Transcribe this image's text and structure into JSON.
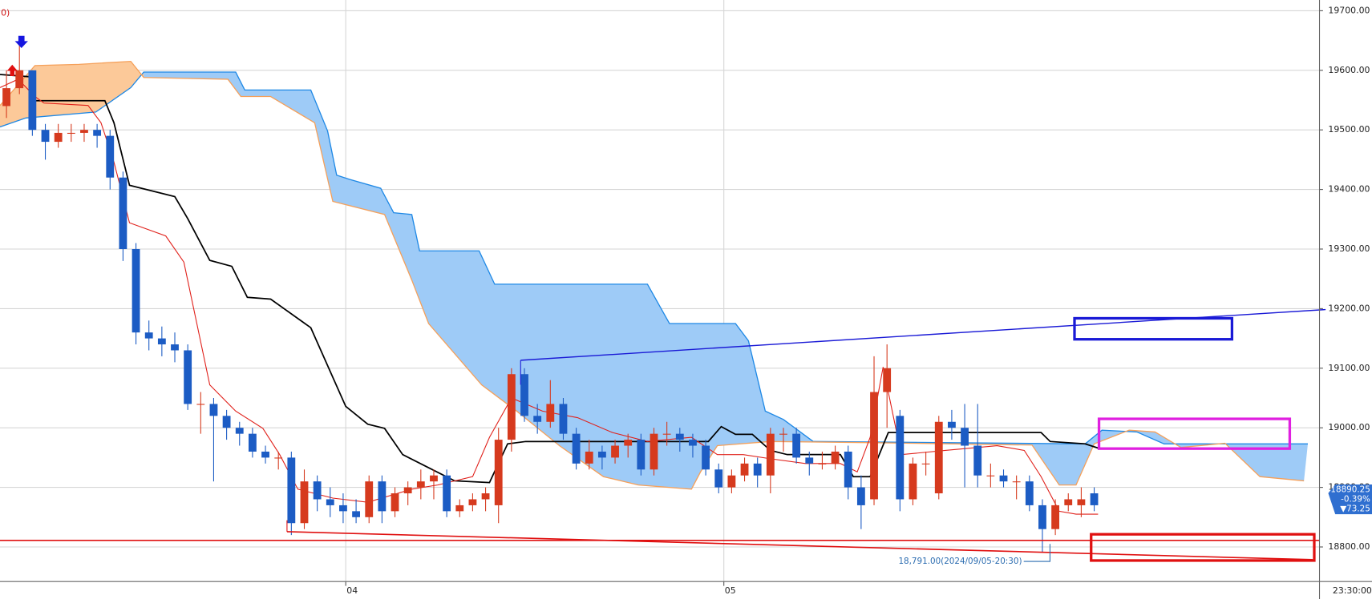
{
  "chart_data": {
    "type": "candlestick",
    "indicator_label": "0)",
    "up_color": "#d63a1e",
    "down_color": "#1c5cc4",
    "ohlc": [
      [
        19540,
        19600,
        19520,
        19570
      ],
      [
        19570,
        19650,
        19560,
        19600
      ],
      [
        19600,
        19600,
        19490,
        19500
      ],
      [
        19500,
        19510,
        19450,
        19480
      ],
      [
        19480,
        19510,
        19470,
        19495
      ],
      [
        19495,
        19510,
        19480,
        19495
      ],
      [
        19495,
        19510,
        19480,
        19500
      ],
      [
        19500,
        19510,
        19470,
        19490
      ],
      [
        19490,
        19500,
        19400,
        19420
      ],
      [
        19420,
        19430,
        19280,
        19300
      ],
      [
        19300,
        19310,
        19140,
        19160
      ],
      [
        19160,
        19180,
        19130,
        19150
      ],
      [
        19150,
        19170,
        19120,
        19140
      ],
      [
        19140,
        19160,
        19110,
        19130
      ],
      [
        19130,
        19140,
        19030,
        19040
      ],
      [
        19040,
        19060,
        18990,
        19040
      ],
      [
        19040,
        19050,
        18910,
        19020
      ],
      [
        19020,
        19030,
        18980,
        19000
      ],
      [
        19000,
        19010,
        18970,
        18990
      ],
      [
        18990,
        19000,
        18950,
        18960
      ],
      [
        18960,
        18970,
        18940,
        18950
      ],
      [
        18950,
        18960,
        18930,
        18950
      ],
      [
        18950,
        18960,
        18820,
        18840
      ],
      [
        18840,
        18930,
        18830,
        18910
      ],
      [
        18910,
        18920,
        18860,
        18880
      ],
      [
        18880,
        18900,
        18850,
        18870
      ],
      [
        18870,
        18890,
        18840,
        18860
      ],
      [
        18860,
        18880,
        18840,
        18850
      ],
      [
        18850,
        18920,
        18840,
        18910
      ],
      [
        18910,
        18920,
        18840,
        18860
      ],
      [
        18860,
        18900,
        18850,
        18890
      ],
      [
        18890,
        18910,
        18870,
        18900
      ],
      [
        18900,
        18930,
        18880,
        18910
      ],
      [
        18910,
        18930,
        18880,
        18920
      ],
      [
        18920,
        18930,
        18850,
        18860
      ],
      [
        18860,
        18880,
        18850,
        18870
      ],
      [
        18870,
        18890,
        18860,
        18880
      ],
      [
        18880,
        18900,
        18860,
        18890
      ],
      [
        18870,
        19000,
        18840,
        18980
      ],
      [
        18980,
        19100,
        18960,
        19090
      ],
      [
        19090,
        19100,
        19010,
        19020
      ],
      [
        19020,
        19040,
        18990,
        19010
      ],
      [
        19010,
        19080,
        19000,
        19040
      ],
      [
        19040,
        19050,
        18980,
        18990
      ],
      [
        18990,
        19000,
        18930,
        18940
      ],
      [
        18940,
        18980,
        18930,
        18960
      ],
      [
        18960,
        18970,
        18930,
        18950
      ],
      [
        18950,
        18980,
        18940,
        18970
      ],
      [
        18970,
        18990,
        18950,
        18980
      ],
      [
        18980,
        18990,
        18920,
        18930
      ],
      [
        18930,
        19000,
        18920,
        18990
      ],
      [
        18990,
        19010,
        18970,
        18990
      ],
      [
        18990,
        19000,
        18960,
        18980
      ],
      [
        18980,
        18990,
        18950,
        18970
      ],
      [
        18970,
        18980,
        18920,
        18930
      ],
      [
        18930,
        18940,
        18890,
        18900
      ],
      [
        18900,
        18930,
        18890,
        18920
      ],
      [
        18920,
        18950,
        18910,
        18940
      ],
      [
        18940,
        18950,
        18900,
        18920
      ],
      [
        18920,
        19000,
        18890,
        18990
      ],
      [
        18990,
        19000,
        18960,
        18990
      ],
      [
        18990,
        19000,
        18940,
        18950
      ],
      [
        18950,
        18960,
        18920,
        18940
      ],
      [
        18940,
        18960,
        18930,
        18940
      ],
      [
        18940,
        18970,
        18930,
        18960
      ],
      [
        18960,
        18970,
        18880,
        18900
      ],
      [
        18900,
        18920,
        18830,
        18870
      ],
      [
        18880,
        19120,
        18870,
        19060
      ],
      [
        19060,
        19140,
        19000,
        19100
      ],
      [
        19020,
        19030,
        18860,
        18880
      ],
      [
        18880,
        18950,
        18870,
        18940
      ],
      [
        18940,
        18960,
        18920,
        18940
      ],
      [
        18890,
        19020,
        18880,
        19010
      ],
      [
        19010,
        19030,
        18980,
        19000
      ],
      [
        19000,
        19040,
        18900,
        18970
      ],
      [
        18970,
        19040,
        18900,
        18920
      ],
      [
        18920,
        18940,
        18900,
        18920
      ],
      [
        18920,
        18930,
        18900,
        18910
      ],
      [
        18910,
        18920,
        18880,
        18910
      ],
      [
        18910,
        18920,
        18860,
        18870
      ],
      [
        18870,
        18880,
        18791,
        18830
      ],
      [
        18830,
        18880,
        18820,
        18870
      ],
      [
        18870,
        18890,
        18860,
        18880
      ],
      [
        18870,
        18900,
        18850,
        18880
      ],
      [
        18890,
        18900,
        18860,
        18870
      ]
    ],
    "lines": [
      {
        "color": "#000000",
        "width": 1.6,
        "x": [
          -0.5,
          1.9,
          2.2,
          7.6,
          8.3,
          9.5,
          13,
          14,
          15.7,
          17.4,
          18.6,
          20.4,
          23.5,
          26.2,
          27.9,
          29.2,
          30.6,
          32.6,
          34.6,
          37.3,
          38.7,
          40.1,
          54.2,
          55.2,
          56.3,
          57.6,
          59,
          60.3,
          64.4,
          65.4,
          66.7,
          68.1,
          79.9,
          80.6,
          83.3,
          84.3
        ],
        "values": [
          19593,
          19589,
          19549,
          19549,
          19512,
          19407,
          19388,
          19351,
          19281,
          19271,
          19219,
          19216,
          19168,
          19036,
          19006,
          18999,
          18955,
          18933,
          18911,
          18908,
          18973,
          18977,
          18977,
          19002,
          18989,
          18989,
          18962,
          18955,
          18955,
          18918,
          18918,
          18992,
          18992,
          18977,
          18973,
          18966
        ]
      },
      {
        "color": "#e0201a",
        "width": 1,
        "x": [
          -0.5,
          0.9,
          2.2,
          2.9,
          6.3,
          7.3,
          8.3,
          9.5,
          12.3,
          13.7,
          15.7,
          17.7,
          19.8,
          21.1,
          22.5,
          25.2,
          27.9,
          31.3,
          33.3,
          36,
          37.3,
          39,
          41.4,
          44.1,
          46.8,
          49.5,
          52.9,
          54.9,
          56.9,
          59,
          61.7,
          64.4,
          65.7,
          66.7,
          67.7,
          69.1,
          72.5,
          76.5,
          78.6,
          79.9,
          81.3,
          82.6,
          84.3
        ],
        "values": [
          19571,
          19585,
          19556,
          19545,
          19541,
          19512,
          19446,
          19344,
          19322,
          19278,
          19072,
          19028,
          18999,
          18955,
          18897,
          18882,
          18875,
          18897,
          18904,
          18918,
          18984,
          19050,
          19028,
          19017,
          18992,
          18977,
          18984,
          18955,
          18955,
          18948,
          18940,
          18940,
          18926,
          18984,
          19102,
          18955,
          18962,
          18970,
          18962,
          18918,
          18860,
          18855,
          18855
        ]
      }
    ],
    "cloud": {
      "span_a": {
        "color": "#1e88e5",
        "x": [
          -0.5,
          1.5,
          6.9,
          9.6,
          10.6,
          17.7,
          18.4,
          23.5,
          24.8,
          25.5,
          26.5,
          28.9,
          29.9,
          31.3,
          31.9,
          36.5,
          37.7,
          49.5,
          51.2,
          56.3,
          57.3,
          58.6,
          60,
          62.3,
          83.3,
          84.6,
          87.3,
          89.4,
          96.1,
          100.5
        ],
        "values": [
          19505,
          19520,
          19530,
          19571,
          19597,
          19597,
          19567,
          19567,
          19498,
          19424,
          19417,
          19402,
          19361,
          19358,
          19297,
          19297,
          19241,
          19241,
          19175,
          19175,
          19146,
          19028,
          19014,
          18977,
          18973,
          18996,
          18993,
          18973,
          18973,
          18973
        ]
      },
      "span_b": {
        "color": "#f5a05a",
        "x": [
          -0.5,
          2.2,
          5.6,
          9.6,
          10.6,
          17.1,
          18.1,
          20.4,
          23.8,
          25.2,
          29.2,
          31.3,
          32.6,
          36.7,
          39.4,
          42.7,
          46.1,
          48.8,
          52.9,
          53.6,
          54.9,
          59,
          67.1,
          79.2,
          81.3,
          82.6,
          84,
          86.7,
          88.7,
          90.7,
          94.1,
          96.8,
          100.2
        ],
        "values": [
          19541,
          19608,
          19610,
          19615,
          19588,
          19585,
          19556,
          19556,
          19512,
          19380,
          19358,
          19248,
          19175,
          19072,
          19028,
          18970,
          18918,
          18904,
          18897,
          18926,
          18970,
          18977,
          18975,
          18971,
          18904,
          18904,
          18973,
          18996,
          18993,
          18967,
          18974,
          18918,
          18911
        ]
      },
      "fill_color": "#9ecbf7",
      "fill_color_inverted": "#fcc999"
    },
    "xlim": [
      -0.5,
      101.4
    ],
    "ylim": [
      18742,
      19718
    ],
    "yticks": [
      {
        "value": 18800,
        "label": "18800.00"
      },
      {
        "value": 18900,
        "label": "18900.00"
      },
      {
        "value": 19000,
        "label": "19000.00"
      },
      {
        "value": 19100,
        "label": "19100.00"
      },
      {
        "value": 19200,
        "label": "19200.00"
      },
      {
        "value": 19300,
        "label": "19300.00"
      },
      {
        "value": 19400,
        "label": "19400.00"
      },
      {
        "value": 19500,
        "label": "19500.00"
      },
      {
        "value": 19600,
        "label": "19600.00"
      },
      {
        "value": 19700,
        "label": "19700.00"
      }
    ],
    "xticks": [
      {
        "value": 26.2,
        "label": "04"
      },
      {
        "value": 55.4,
        "label": "05"
      }
    ],
    "last_time_label": "23:30:00",
    "grid": true,
    "last_price": 18890.25,
    "last_change": "-0.39%",
    "last_diff": "▼73.25",
    "low_annotation": "18,791.00(2024/09/05-20:30)"
  }
}
